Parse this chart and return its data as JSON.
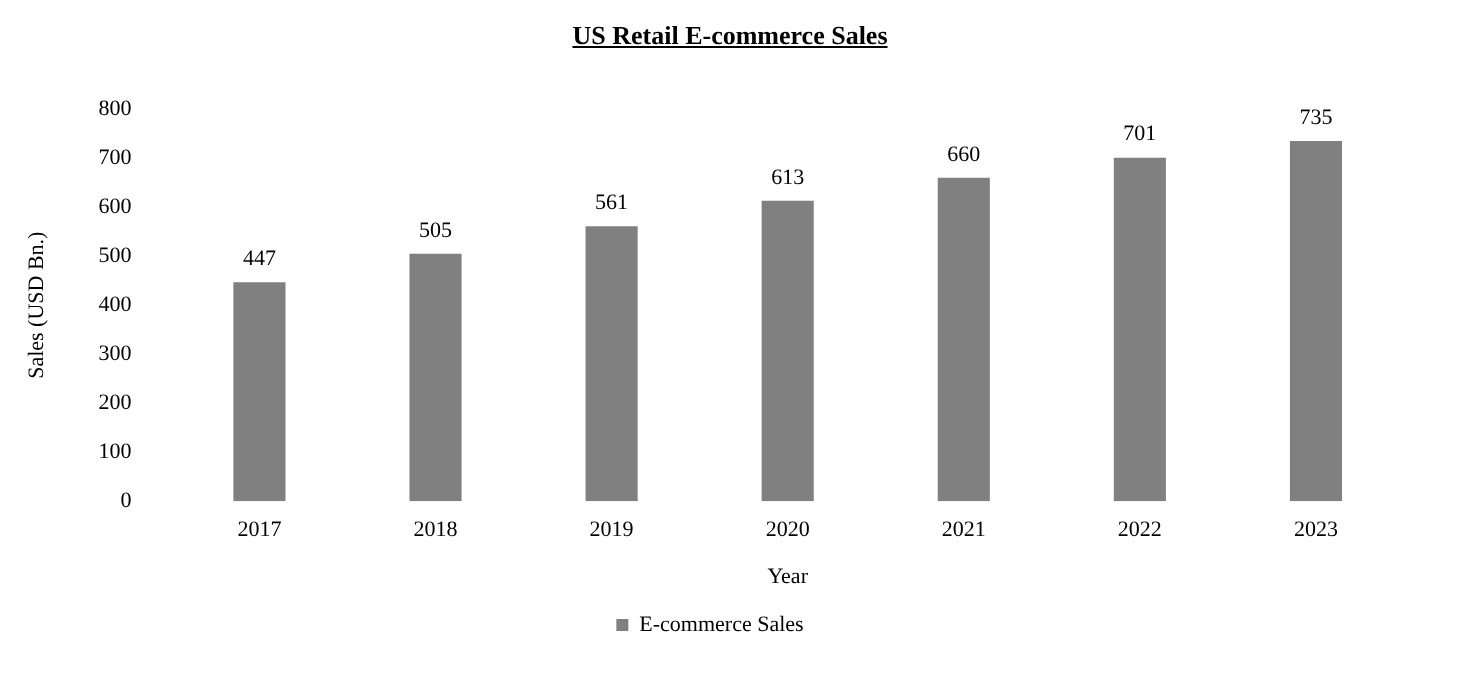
{
  "chart_data": {
    "type": "bar",
    "title": "US Retail E-commerce Sales",
    "xlabel": "Year",
    "ylabel": "Sales (USD Bn.)",
    "categories": [
      "2017",
      "2018",
      "2019",
      "2020",
      "2021",
      "2022",
      "2023"
    ],
    "series": [
      {
        "name": "E-commerce Sales",
        "color": "#808080",
        "values": [
          447,
          505,
          561,
          613,
          660,
          701,
          735
        ]
      }
    ],
    "ylim": [
      0,
      800
    ],
    "yticks": [
      0,
      100,
      200,
      300,
      400,
      500,
      600,
      700,
      800
    ],
    "grid": false,
    "legend": "bottom",
    "data_labels": true
  }
}
